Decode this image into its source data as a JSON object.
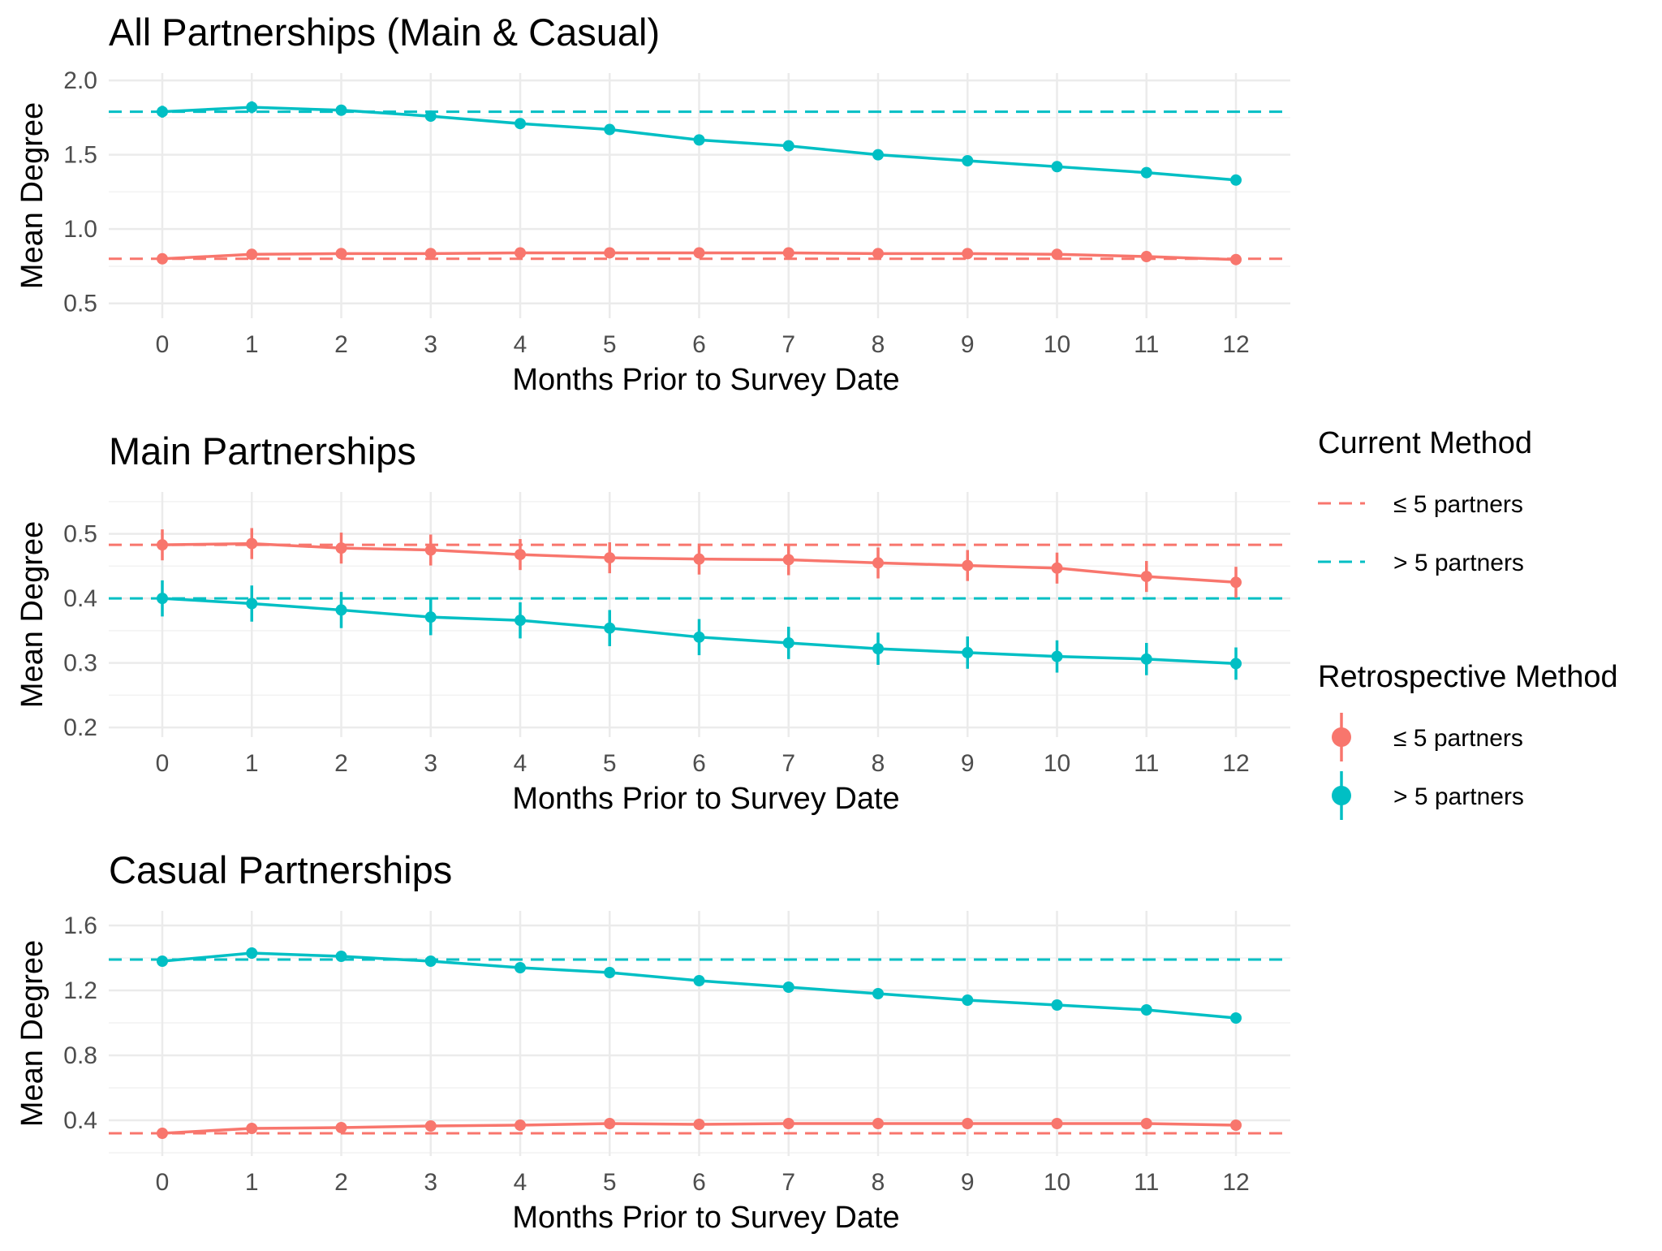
{
  "chart_data": {
    "type": "line",
    "x": [
      0,
      1,
      2,
      3,
      4,
      5,
      6,
      7,
      8,
      9,
      10,
      11,
      12
    ],
    "colors": {
      "le5": "#F8766D",
      "gt5": "#00BFC4"
    },
    "legend": {
      "placement": "right",
      "current_title": "Current Method",
      "retro_title": "Retrospective Method",
      "le5_label": "≤ 5 partners",
      "gt5_label": "> 5 partners"
    },
    "panels": [
      {
        "title": "All Partnerships (Main & Casual)",
        "xlabel": "Months Prior to Survey Date",
        "ylabel": "Mean Degree",
        "ylim": [
          0.4,
          2.05
        ],
        "yticks": [
          0.5,
          1.0,
          1.5,
          2.0
        ],
        "ytick_labels": [
          "0.5",
          "1.0",
          "1.5",
          "2.0"
        ],
        "current": {
          "le5": 0.8,
          "gt5": 1.79
        },
        "series": [
          {
            "key": "le5",
            "values": [
              0.8,
              0.83,
              0.835,
              0.835,
              0.84,
              0.84,
              0.84,
              0.84,
              0.835,
              0.835,
              0.83,
              0.815,
              0.795
            ],
            "err": [
              0.01,
              0.015,
              0.015,
              0.015,
              0.015,
              0.015,
              0.015,
              0.015,
              0.015,
              0.015,
              0.015,
              0.015,
              0.015
            ]
          },
          {
            "key": "gt5",
            "values": [
              1.79,
              1.82,
              1.8,
              1.76,
              1.71,
              1.67,
              1.6,
              1.56,
              1.5,
              1.46,
              1.42,
              1.38,
              1.33
            ],
            "err": [
              0.04,
              0.04,
              0.035,
              0.035,
              0.035,
              0.03,
              0.03,
              0.03,
              0.03,
              0.03,
              0.03,
              0.03,
              0.03
            ]
          }
        ]
      },
      {
        "title": "Main Partnerships",
        "xlabel": "Months Prior to Survey Date",
        "ylabel": "Mean Degree",
        "ylim": [
          0.185,
          0.565
        ],
        "yticks": [
          0.2,
          0.3,
          0.4,
          0.5
        ],
        "ytick_labels": [
          "0.2",
          "0.3",
          "0.4",
          "0.5"
        ],
        "current": {
          "le5": 0.483,
          "gt5": 0.4
        },
        "series": [
          {
            "key": "le5",
            "values": [
              0.483,
              0.485,
              0.478,
              0.475,
              0.468,
              0.463,
              0.461,
              0.46,
              0.455,
              0.451,
              0.447,
              0.434,
              0.425
            ],
            "err": [
              0.024,
              0.024,
              0.024,
              0.024,
              0.024,
              0.024,
              0.024,
              0.024,
              0.024,
              0.024,
              0.024,
              0.024,
              0.024
            ]
          },
          {
            "key": "gt5",
            "values": [
              0.4,
              0.392,
              0.382,
              0.371,
              0.366,
              0.354,
              0.34,
              0.331,
              0.322,
              0.316,
              0.31,
              0.306,
              0.299
            ],
            "err": [
              0.028,
              0.028,
              0.028,
              0.028,
              0.028,
              0.028,
              0.028,
              0.025,
              0.025,
              0.025,
              0.025,
              0.025,
              0.025
            ]
          }
        ]
      },
      {
        "title": "Casual Partnerships",
        "xlabel": "Months Prior to Survey Date",
        "ylabel": "Mean Degree",
        "ylim": [
          0.18,
          1.69
        ],
        "yticks": [
          0.4,
          0.8,
          1.2,
          1.6
        ],
        "ytick_labels": [
          "0.4",
          "0.8",
          "1.2",
          "1.6"
        ],
        "current": {
          "le5": 0.32,
          "gt5": 1.39
        },
        "series": [
          {
            "key": "le5",
            "values": [
              0.32,
              0.35,
              0.355,
              0.365,
              0.37,
              0.38,
              0.375,
              0.38,
              0.38,
              0.38,
              0.38,
              0.38,
              0.37
            ],
            "err": [
              0.01,
              0.012,
              0.012,
              0.012,
              0.012,
              0.012,
              0.012,
              0.012,
              0.012,
              0.012,
              0.012,
              0.012,
              0.012
            ]
          },
          {
            "key": "gt5",
            "values": [
              1.38,
              1.43,
              1.41,
              1.38,
              1.34,
              1.31,
              1.26,
              1.22,
              1.18,
              1.14,
              1.11,
              1.08,
              1.03
            ],
            "err": [
              0.03,
              0.035,
              0.03,
              0.03,
              0.03,
              0.03,
              0.03,
              0.025,
              0.025,
              0.025,
              0.025,
              0.025,
              0.025
            ]
          }
        ]
      }
    ]
  }
}
